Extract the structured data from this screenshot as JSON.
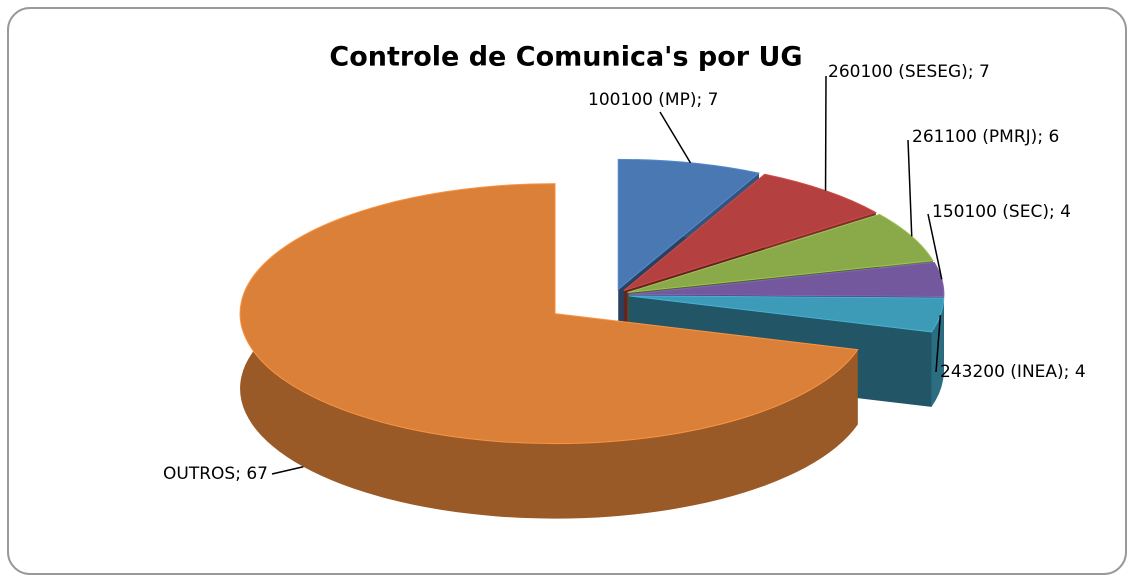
{
  "chart_data": {
    "type": "pie3d",
    "title": "Controle de Comunica's por UG",
    "categories": [
      "100100 (MP)",
      "260100 (SESEG)",
      "261100 (PMRJ)",
      "150100 (SEC)",
      "243200 (INEA)",
      "OUTROS"
    ],
    "values": [
      7,
      7,
      6,
      4,
      4,
      67
    ],
    "colors": [
      "#4a78b3",
      "#b4413f",
      "#8aaa4a",
      "#73589e",
      "#3d9bb8",
      "#da8039"
    ],
    "label_separator": "; "
  }
}
